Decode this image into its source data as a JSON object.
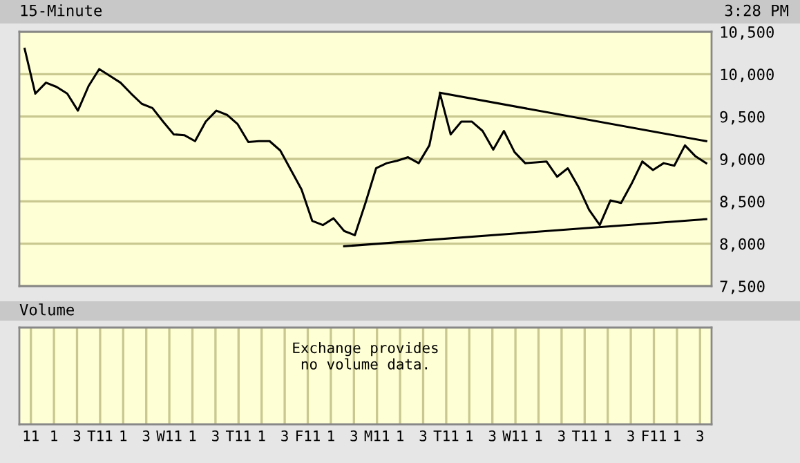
{
  "chart_data": [
    {
      "type": "line",
      "title": "15-Minute",
      "annotations": [
        "3:28 PM"
      ],
      "categories": [
        null,
        null,
        null,
        null,
        null,
        null,
        null,
        null,
        null,
        null,
        null,
        null,
        null,
        null,
        null,
        null,
        null,
        null,
        null,
        null,
        null,
        null,
        null,
        null,
        null,
        null,
        null,
        null,
        null,
        null,
        null,
        null,
        null,
        null,
        null,
        null,
        null,
        null,
        null,
        null,
        null,
        null,
        null,
        null,
        null,
        null,
        null,
        null,
        null,
        null,
        null,
        null,
        null,
        null,
        null,
        null,
        null,
        null,
        null,
        null,
        null,
        null,
        null,
        null,
        null
      ],
      "series": [
        {
          "color": "#000000",
          "values": [
            10300,
            9770,
            9900,
            9850,
            9770,
            9570,
            9860,
            10060,
            9980,
            9900,
            9770,
            9650,
            9600,
            9440,
            9290,
            9280,
            9210,
            9440,
            9570,
            9520,
            9410,
            9200,
            9210,
            9210,
            9100,
            8870,
            8640,
            8270,
            8220,
            8300,
            8150,
            8100,
            8480,
            8890,
            8950,
            8980,
            9020,
            8950,
            9160,
            9770,
            9290,
            9440,
            9440,
            9330,
            9110,
            9330,
            9080,
            8950,
            8960,
            8970,
            8790,
            8890,
            8670,
            8400,
            8220,
            8510,
            8480,
            8710,
            8970,
            8870,
            8950,
            8920,
            9160,
            9030,
            8950
          ]
        },
        {
          "color": "#000000",
          "values": [
            null,
            null,
            null,
            null,
            null,
            null,
            null,
            null,
            null,
            null,
            null,
            null,
            null,
            null,
            null,
            null,
            null,
            null,
            null,
            null,
            null,
            null,
            null,
            null,
            null,
            null,
            null,
            null,
            null,
            null,
            null,
            null,
            null,
            null,
            null,
            null,
            null,
            null,
            null,
            9780,
            null,
            null,
            null,
            null,
            null,
            null,
            null,
            null,
            null,
            null,
            null,
            null,
            null,
            null,
            null,
            null,
            null,
            null,
            null,
            null,
            null,
            null,
            null,
            null,
            9210
          ]
        },
        {
          "color": "#000000",
          "values": [
            null,
            null,
            null,
            null,
            null,
            null,
            null,
            null,
            null,
            null,
            null,
            null,
            null,
            null,
            null,
            null,
            null,
            null,
            null,
            null,
            null,
            null,
            null,
            null,
            null,
            null,
            null,
            null,
            null,
            null,
            7970,
            null,
            null,
            null,
            null,
            null,
            null,
            null,
            null,
            null,
            null,
            null,
            null,
            null,
            null,
            null,
            null,
            null,
            null,
            null,
            null,
            null,
            null,
            null,
            null,
            null,
            null,
            null,
            null,
            null,
            null,
            null,
            null,
            null,
            8290
          ]
        }
      ],
      "ylim": [
        7500,
        10500
      ],
      "yticks": [
        {
          "value": 7500,
          "label": "7,500"
        },
        {
          "value": 8000,
          "label": "8,000"
        },
        {
          "value": 8500,
          "label": "8,500"
        },
        {
          "value": 9000,
          "label": "9,000"
        },
        {
          "value": 9500,
          "label": "9,500"
        },
        {
          "value": 10000,
          "label": "10,000"
        },
        {
          "value": 10500,
          "label": "10,500"
        }
      ],
      "tick_labels": "y",
      "grid": "y",
      "line_style": "solid"
    },
    {
      "type": "other",
      "title": "Volume",
      "annotations": [
        "Exchange provides\nno volume data."
      ],
      "categories": [
        "11",
        "1",
        "3",
        "T11",
        "1",
        "3",
        "W11",
        "1",
        "3",
        "T11",
        "1",
        "3",
        "F11",
        "1",
        "3",
        "M11",
        "1",
        "3",
        "T11",
        "1",
        "3",
        "W11",
        "1",
        "3",
        "T11",
        "1",
        "3",
        "F11",
        "1",
        "3"
      ]
    }
  ]
}
